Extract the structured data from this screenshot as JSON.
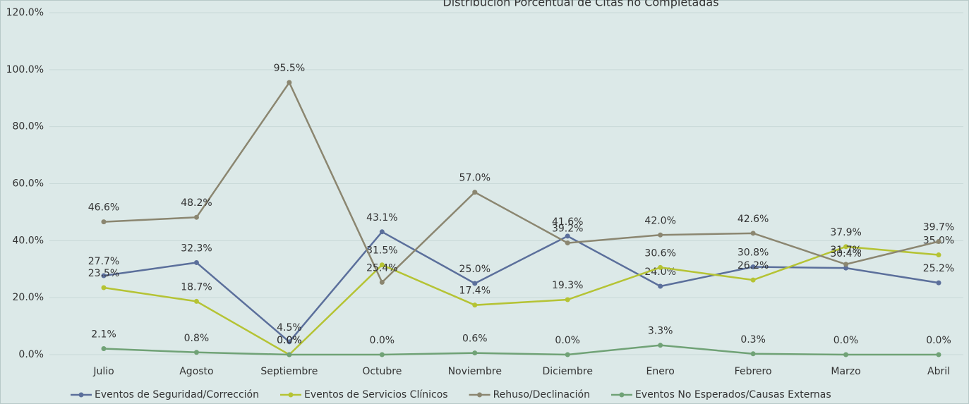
{
  "chart_data": {
    "type": "line",
    "title": "Distribución Porcentual de Citas no Completadas",
    "categories": [
      "Julio",
      "Agosto",
      "Septiembre",
      "Octubre",
      "Noviembre",
      "Diciembre",
      "Enero",
      "Febrero",
      "Marzo",
      "Abril"
    ],
    "series": [
      {
        "name": "Eventos de Seguridad/Corrección",
        "color": "#5b6f9b",
        "values": [
          27.7,
          32.3,
          4.5,
          43.1,
          25.0,
          41.6,
          24.0,
          30.8,
          30.4,
          25.2
        ],
        "value_labels": [
          "27.7%",
          "32.3%",
          "4.5%",
          "43.1%",
          "25.0%",
          "41.6%",
          "24.0%",
          "30.8%",
          "30.4%",
          "25.2%"
        ]
      },
      {
        "name": "Eventos de Servicios Clínicos",
        "color": "#b5c334",
        "values": [
          23.5,
          18.7,
          0.0,
          31.5,
          17.4,
          19.3,
          30.6,
          26.2,
          37.9,
          35.0
        ],
        "value_labels": [
          "23.5%",
          "18.7%",
          "0.0%",
          "31.5%",
          "17.4%",
          "19.3%",
          "30.6%",
          "26.2%",
          "37.9%",
          "35.0%"
        ]
      },
      {
        "name": "Rehuso/Declinación",
        "color": "#8b8670",
        "values": [
          46.6,
          48.2,
          95.5,
          25.4,
          57.0,
          39.2,
          42.0,
          42.6,
          31.7,
          39.7
        ],
        "value_labels": [
          "46.6%",
          "48.2%",
          "95.5%",
          "25.4%",
          "57.0%",
          "39.2%",
          "42.0%",
          "42.6%",
          "31.7%",
          "39.7%"
        ]
      },
      {
        "name": "Eventos No Esperados/Causas Externas",
        "color": "#70a276",
        "values": [
          2.1,
          0.8,
          0.0,
          0.0,
          0.6,
          0.0,
          3.3,
          0.3,
          0.0,
          0.0
        ],
        "value_labels": [
          "2.1%",
          "0.8%",
          "0.0%",
          "0.0%",
          "0.6%",
          "0.0%",
          "3.3%",
          "0.3%",
          "0.0%",
          "0.0%"
        ]
      }
    ],
    "ylim": [
      0,
      120
    ],
    "yticks": [
      {
        "value": 0,
        "label": "0.0%"
      },
      {
        "value": 20,
        "label": "20.0%"
      },
      {
        "value": 40,
        "label": "40.0%"
      },
      {
        "value": 60,
        "label": "60.0%"
      },
      {
        "value": 80,
        "label": "80.0%"
      },
      {
        "value": 100,
        "label": "100.0%"
      },
      {
        "value": 120,
        "label": "120.0%"
      }
    ],
    "grid": true,
    "legend": "bottom"
  }
}
